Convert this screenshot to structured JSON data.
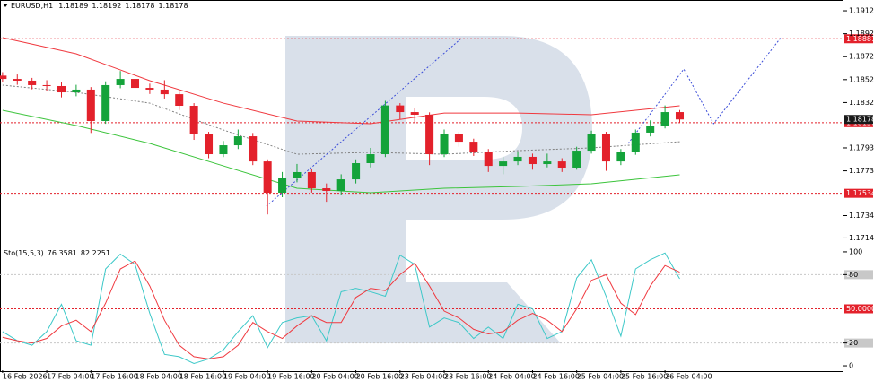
{
  "chart_data": [
    {
      "type": "candlestick",
      "title": "EURUSD,H1",
      "header_values": [
        1.18189,
        1.18192,
        1.18178,
        1.18178
      ],
      "x": [
        0,
        4,
        8,
        12,
        16,
        20,
        24,
        28,
        32,
        36,
        40,
        44,
        48,
        52,
        56,
        60,
        64,
        68,
        72,
        76,
        80,
        84,
        88,
        92,
        96,
        100,
        104,
        108,
        112,
        116,
        120,
        124,
        128,
        132,
        136,
        140,
        144,
        148,
        152,
        156,
        160,
        164,
        168,
        172,
        176,
        180,
        184
      ],
      "open": [
        1.1856,
        1.18531,
        1.18516,
        1.18477,
        1.18469,
        1.18414,
        1.18438,
        1.18164,
        1.18477,
        1.18531,
        1.18453,
        1.18438,
        1.18398,
        1.18297,
        1.18047,
        1.17875,
        1.17953,
        1.18031,
        1.17812,
        1.17539,
        1.17672,
        1.17719,
        1.17578,
        1.17555,
        1.17656,
        1.17797,
        1.17875,
        1.183,
        1.18242,
        1.18219,
        1.17875,
        1.18047,
        1.17984,
        1.17891,
        1.17773,
        1.17812,
        1.17852,
        1.17789,
        1.17812,
        1.17758,
        1.17906,
        1.18047,
        1.17812,
        1.17891,
        1.18063,
        1.18125,
        1.18242
      ],
      "high": [
        1.1859,
        1.1857,
        1.1854,
        1.1852,
        1.185,
        1.1848,
        1.1846,
        1.1851,
        1.186,
        1.1856,
        1.1849,
        1.1852,
        1.1842,
        1.1832,
        1.1807,
        1.1799,
        1.1809,
        1.1806,
        1.1783,
        1.1772,
        1.1779,
        1.1775,
        1.1762,
        1.177,
        1.1783,
        1.1793,
        1.1834,
        1.1832,
        1.1828,
        1.1824,
        1.1809,
        1.1807,
        1.1801,
        1.1792,
        1.1785,
        1.179,
        1.1788,
        1.1788,
        1.1784,
        1.1794,
        1.1808,
        1.1807,
        1.1792,
        1.1809,
        1.1817,
        1.183,
        1.1826
      ],
      "low": [
        1.185,
        1.1848,
        1.1844,
        1.1843,
        1.1837,
        1.1838,
        1.1806,
        1.1814,
        1.1845,
        1.1842,
        1.184,
        1.1836,
        1.1826,
        1.18,
        1.1784,
        1.1785,
        1.1792,
        1.1778,
        1.1735,
        1.175,
        1.1763,
        1.1754,
        1.1746,
        1.1752,
        1.1762,
        1.1776,
        1.1785,
        1.1818,
        1.1815,
        1.1778,
        1.1785,
        1.1794,
        1.1786,
        1.1772,
        1.177,
        1.1778,
        1.1774,
        1.1776,
        1.1772,
        1.1774,
        1.1788,
        1.1773,
        1.1778,
        1.1787,
        1.1803,
        1.181,
        1.1815
      ],
      "close": [
        1.18531,
        1.18516,
        1.18477,
        1.18469,
        1.18414,
        1.18438,
        1.18164,
        1.18477,
        1.18531,
        1.18453,
        1.18438,
        1.18398,
        1.18297,
        1.18047,
        1.17875,
        1.17953,
        1.18031,
        1.17812,
        1.17539,
        1.17672,
        1.17719,
        1.17578,
        1.17555,
        1.17656,
        1.17797,
        1.17875,
        1.183,
        1.18242,
        1.18219,
        1.17875,
        1.18047,
        1.17984,
        1.17891,
        1.17773,
        1.17812,
        1.17852,
        1.17789,
        1.17812,
        1.17758,
        1.17906,
        1.18047,
        1.17812,
        1.17891,
        1.18063,
        1.18125,
        1.18242,
        1.18178
      ],
      "up_color": "#14a33a",
      "down_color": "#e3212b",
      "lines": [
        {
          "color": "#f0393f",
          "style": "solid",
          "x": [
            0,
            20,
            40,
            60,
            80,
            100,
            120,
            140,
            160,
            184
          ],
          "values": [
            1.18891,
            1.1875,
            1.18516,
            1.1832,
            1.18164,
            1.18141,
            1.18234,
            1.18234,
            1.18219,
            1.18297
          ]
        },
        {
          "color": "#3cc43c",
          "style": "solid",
          "x": [
            0,
            20,
            40,
            60,
            80,
            100,
            120,
            140,
            160,
            184
          ],
          "values": [
            1.18258,
            1.18125,
            1.17969,
            1.17773,
            1.17578,
            1.17539,
            1.17578,
            1.17594,
            1.17617,
            1.17695
          ]
        },
        {
          "color": "#808080",
          "style": "dotted",
          "x": [
            0,
            20,
            40,
            60,
            80,
            100,
            120,
            140,
            160,
            184
          ],
          "values": [
            1.18477,
            1.18414,
            1.1832,
            1.18086,
            1.17875,
            1.17891,
            1.17875,
            1.17906,
            1.1793,
            1.17984
          ]
        },
        {
          "color": "#3a4cd8",
          "style": "dotted",
          "x": [
            71.7,
            124.9
          ],
          "values": [
            1.17422,
            1.18891
          ]
        },
        {
          "color": "#3a4cd8",
          "style": "dotted",
          "x": [
            170,
            185.1,
            193.2,
            211.5
          ],
          "values": [
            1.17969,
            1.18617,
            1.18141,
            1.18891
          ]
        }
      ],
      "levels": [
        {
          "value": 1.18881,
          "color": "#e3212b"
        },
        {
          "value": 1.1815,
          "label": "1.18150",
          "color": "#e3212b"
        },
        {
          "value": 1.17534,
          "color": "#e3212b"
        }
      ],
      "current_price": 1.18178,
      "xlim": [
        -0.7,
        228.5
      ],
      "ylim": [
        1.17086,
        1.19219
      ],
      "yticks": [
        1.19125,
        1.18925,
        1.18725,
        1.18525,
        1.18325,
        {
          "value": 1.1793,
          "label": "1.17930"
        },
        {
          "value": 1.1773,
          "label": "1.17730"
        },
        {
          "value": 1.1734,
          "label": "1.17340"
        },
        1.17145
      ],
      "xticks": [
        {
          "value": 0,
          "label": "16 Feb 2026"
        },
        {
          "value": 12,
          "label": "17 Feb 04:00"
        },
        {
          "value": 24,
          "label": "17 Feb 16:00"
        },
        {
          "value": 36,
          "label": "18 Feb 04:00"
        },
        {
          "value": 48,
          "label": "18 Feb 16:00"
        },
        {
          "value": 60,
          "label": "19 Feb 04:00"
        },
        {
          "value": 72,
          "label": "19 Feb 16:00"
        },
        {
          "value": 84,
          "label": "20 Feb 04:00"
        },
        {
          "value": 96,
          "label": "20 Feb 16:00"
        },
        {
          "value": 108,
          "label": "23 Feb 04:00"
        },
        {
          "value": 120,
          "label": "23 Feb 16:00"
        },
        {
          "value": 132,
          "label": "24 Feb 04:00"
        },
        {
          "value": 144,
          "label": "24 Feb 16:00"
        },
        {
          "value": 156,
          "label": "25 Feb 04:00"
        },
        {
          "value": 168,
          "label": "25 Feb 16:00"
        },
        {
          "value": 180,
          "label": "26 Feb 04:00"
        }
      ]
    },
    {
      "type": "line",
      "title": "Sto(15,5,3)",
      "x": [
        0,
        4,
        8,
        12,
        16,
        20,
        24,
        28,
        32,
        36,
        40,
        44,
        48,
        52,
        56,
        60,
        64,
        68,
        72,
        76,
        80,
        84,
        88,
        92,
        96,
        100,
        104,
        108,
        112,
        116,
        120,
        124,
        128,
        132,
        136,
        140,
        144,
        148,
        152,
        156,
        160,
        164,
        168,
        172,
        176,
        180,
        184
      ],
      "series": [
        {
          "color": "#3cc8c8",
          "values": [
            30,
            22,
            18,
            30,
            54,
            22,
            18,
            85,
            98,
            89,
            46,
            10,
            8,
            2,
            6,
            14,
            30,
            44,
            16,
            38,
            42,
            44,
            22,
            65,
            68,
            65,
            61,
            97,
            89,
            34,
            42,
            38,
            24,
            34,
            24,
            54,
            50,
            24,
            30,
            77,
            93,
            61,
            26,
            85,
            93,
            99,
            76.3581
          ]
        },
        {
          "color": "#f0393f",
          "values": [
            25,
            22,
            20,
            24,
            35,
            40,
            30,
            55,
            85,
            92,
            70,
            40,
            18,
            8,
            6,
            8,
            18,
            38,
            30,
            24,
            35,
            44,
            38,
            38,
            60,
            68,
            66,
            80,
            90,
            70,
            48,
            42,
            32,
            28,
            30,
            40,
            46,
            40,
            30,
            50,
            75,
            80,
            55,
            45,
            70,
            88,
            82.2251
          ]
        }
      ],
      "levels": [
        {
          "value": 80,
          "color": "#c8c8c8"
        },
        {
          "value": 20,
          "color": "#c8c8c8"
        },
        {
          "value": 50,
          "label": "50.0000",
          "color": "#e3212b"
        }
      ],
      "xlim": [
        -0.7,
        228.5
      ],
      "ylim": [
        -3.9,
        103.1
      ],
      "yticks": [
        100,
        80,
        20,
        0
      ]
    }
  ]
}
